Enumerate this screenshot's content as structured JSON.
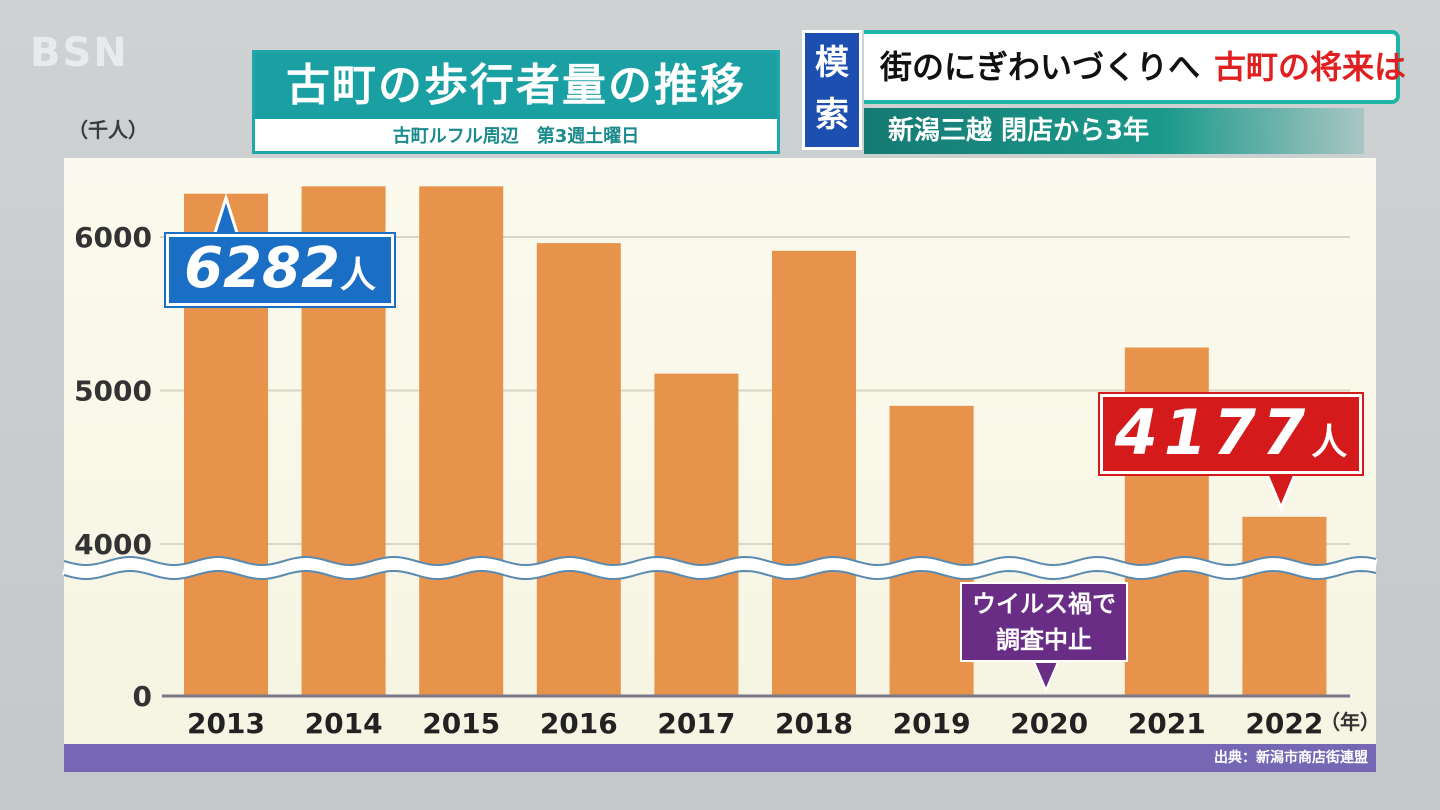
{
  "header": {
    "logo": "BSN",
    "title": "古町の歩行者量の推移",
    "subtitle": "古町ルフル周辺　第3週土曜日"
  },
  "banner": {
    "tag": "模索",
    "headline_dark": "街のにぎわいづくりへ",
    "headline_red": "古町の将来は",
    "subline": "新潟三越 閉店から3年"
  },
  "chart_data": {
    "type": "bar",
    "title": "古町の歩行者量の推移",
    "subtitle": "古町ルフル周辺　第3週土曜日",
    "unit_label": "（千人）",
    "x_unit_label": "（年）",
    "categories": [
      "2013",
      "2014",
      "2015",
      "2016",
      "2017",
      "2018",
      "2019",
      "2020",
      "2021",
      "2022"
    ],
    "values": [
      6282,
      6330,
      6330,
      5960,
      5110,
      5910,
      4900,
      null,
      5280,
      4177
    ],
    "y_ticks": [
      "6000",
      "5000",
      "4000",
      "0"
    ],
    "y_tick_values": [
      6000,
      5000,
      4000,
      0
    ],
    "ylim": [
      3800,
      6600
    ],
    "axis_break": true,
    "bar_color": "#e8934c",
    "annotations": {
      "first": {
        "value": "6282",
        "suffix": "人",
        "color": "#1a6fc4"
      },
      "last": {
        "value": "4177",
        "suffix": "人",
        "color": "#d41a1a"
      },
      "covid": {
        "line1": "ウイルス禍で",
        "line2": "調査中止",
        "color": "#6a2d86"
      }
    },
    "source": "出典：新潟市商店街連盟"
  }
}
